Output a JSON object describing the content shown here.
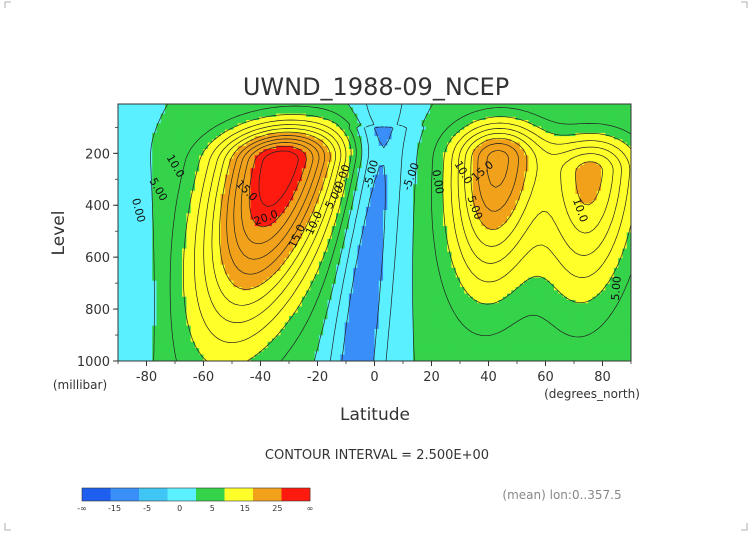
{
  "chart_data": {
    "type": "contour",
    "title": "UWND_1988-09_NCEP",
    "xlabel": "Latitude",
    "ylabel": "Level",
    "x_units": "(degrees_north)",
    "y_units": "(millibar)",
    "xlim": [
      -90,
      90
    ],
    "ylim": [
      1000,
      10
    ],
    "x_ticks": [
      -80,
      -60,
      -40,
      -20,
      0,
      20,
      40,
      60,
      80
    ],
    "y_ticks": [
      200,
      400,
      600,
      800,
      1000
    ],
    "contour_interval_text": "CONTOUR INTERVAL = 2.500E+00",
    "footer_note": "(mean) lon:0..357.5",
    "colorbar": {
      "labels": [
        "-∞",
        "-15",
        "-5",
        "0",
        "5",
        "15",
        "25",
        "∞"
      ],
      "colors": [
        "#1f5ff0",
        "#3a8ef8",
        "#3fc6f5",
        "#5af0ff",
        "#34d34a",
        "#ffff2a",
        "#f1a11a",
        "#ff1a10"
      ]
    },
    "band_colors": {
      "lt_m5": "#3a8ef8",
      "m5_0": "#5af0ff",
      "0_5": "#34d34a",
      "5_15": "#ffff2a",
      "15_25": "#f1a11a",
      "gt_25": "#ff1a10"
    },
    "features": [
      {
        "type": "jet",
        "lat": -33,
        "level": 230,
        "peak": 30
      },
      {
        "type": "jet",
        "lat": 43,
        "level": 220,
        "peak": 21
      },
      {
        "type": "jet",
        "lat": 76,
        "level": 270,
        "peak": 16
      },
      {
        "type": "easterly",
        "lat": -2,
        "level_range": [
          100,
          1000
        ],
        "min": -7
      }
    ],
    "contour_labels": [
      {
        "text": "10.0",
        "lat": -70,
        "level": 250,
        "rotate": 60
      },
      {
        "text": "5.00",
        "lat": -76,
        "level": 340,
        "rotate": 60
      },
      {
        "text": "0.00",
        "lat": -83,
        "level": 420,
        "rotate": 75
      },
      {
        "text": "15.0",
        "lat": -45,
        "level": 345,
        "rotate": 45
      },
      {
        "text": "20.0",
        "lat": -38,
        "level": 450,
        "rotate": -20
      },
      {
        "text": "15.0",
        "lat": -27,
        "level": 520,
        "rotate": -65
      },
      {
        "text": "10.0",
        "lat": -21,
        "level": 470,
        "rotate": -65
      },
      {
        "text": "5.00",
        "lat": -14,
        "level": 370,
        "rotate": -60
      },
      {
        "text": "0.00",
        "lat": -11,
        "level": 290,
        "rotate": -70
      },
      {
        "text": "-5.00",
        "lat": -1,
        "level": 280,
        "rotate": -75
      },
      {
        "text": "-5.00",
        "lat": 13,
        "level": 290,
        "rotate": -70
      },
      {
        "text": "0.00",
        "lat": 22,
        "level": 310,
        "rotate": 80
      },
      {
        "text": "10.0",
        "lat": 31,
        "level": 275,
        "rotate": 60
      },
      {
        "text": "15.0",
        "lat": 38,
        "level": 270,
        "rotate": -40
      },
      {
        "text": "5.00",
        "lat": 35,
        "level": 410,
        "rotate": 70
      },
      {
        "text": "10.0",
        "lat": 72,
        "level": 420,
        "rotate": 70
      },
      {
        "text": "5.00",
        "lat": 85,
        "level": 720,
        "rotate": -85
      }
    ]
  }
}
